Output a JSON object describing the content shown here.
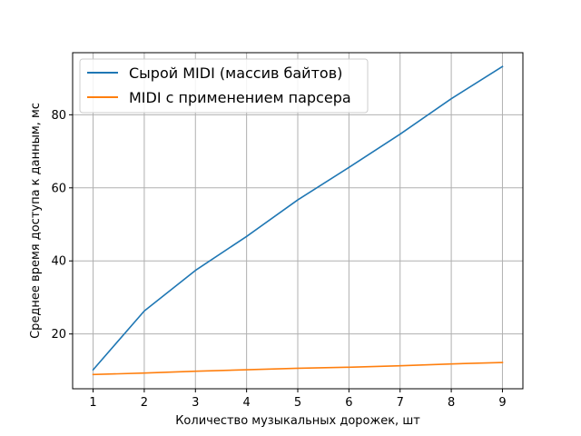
{
  "chart_data": {
    "type": "line",
    "x": [
      1,
      2,
      3,
      4,
      5,
      6,
      7,
      8,
      9
    ],
    "series": [
      {
        "name": "Сырой MIDI (массив байтов)",
        "color": "#1f77b4",
        "values": [
          10.2,
          26.3,
          37.4,
          46.7,
          56.7,
          65.6,
          74.7,
          84.4,
          93.2
        ]
      },
      {
        "name": "MIDI с применением парсера",
        "color": "#ff7f0e",
        "values": [
          8.9,
          9.3,
          9.8,
          10.2,
          10.6,
          10.9,
          11.3,
          11.8,
          12.2
        ]
      }
    ],
    "xlabel": "Количество музыкальных дорожек, шт",
    "ylabel": "Среднее время доступа к данным, мс",
    "xlim": [
      0.6,
      9.4
    ],
    "ylim": [
      5.0,
      97.0
    ],
    "xticks": [
      1,
      2,
      3,
      4,
      5,
      6,
      7,
      8,
      9
    ],
    "yticks": [
      20,
      40,
      60,
      80
    ],
    "grid": true,
    "legend_position": "top-left"
  }
}
